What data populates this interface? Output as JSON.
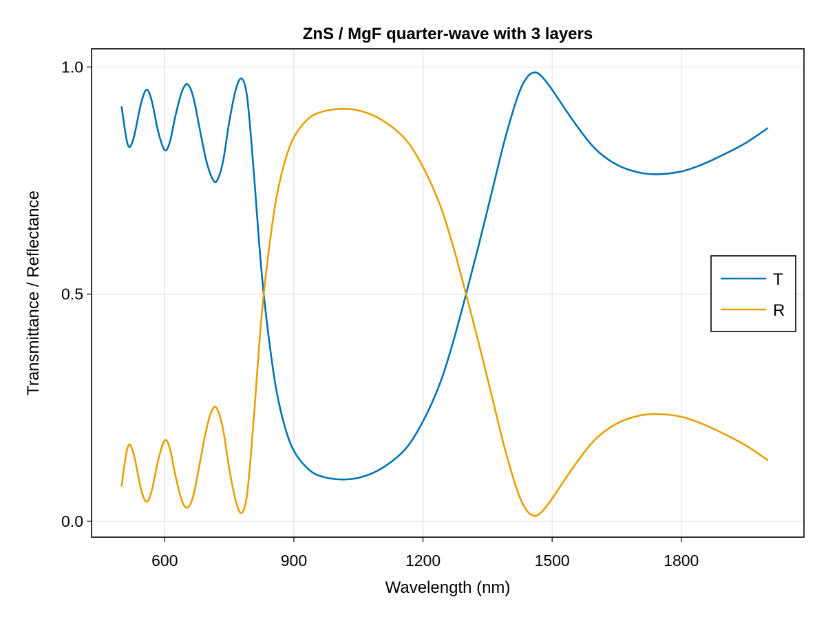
{
  "chart_data": {
    "type": "line",
    "title": "ZnS / MgF quarter-wave with 3 layers",
    "xlabel": "Wavelength (nm)",
    "ylabel": "Transmittance / Reflectance",
    "xlim": [
      430,
      2085
    ],
    "ylim": [
      -0.035,
      1.04
    ],
    "xticks": [
      600,
      900,
      1200,
      1500,
      1800
    ],
    "xtick_labels": [
      "600",
      "900",
      "1200",
      "1500",
      "1800"
    ],
    "yticks": [
      0.0,
      0.5,
      1.0
    ],
    "ytick_labels": [
      "0.0",
      "0.5",
      "1.0"
    ],
    "grid": true,
    "legend_position": "right",
    "series": [
      {
        "name": "T",
        "color": "#0072b2",
        "points": [
          [
            500,
            0.912
          ],
          [
            506,
            0.872
          ],
          [
            513,
            0.833
          ],
          [
            520,
            0.825
          ],
          [
            530,
            0.852
          ],
          [
            545,
            0.92
          ],
          [
            558,
            0.95
          ],
          [
            570,
            0.925
          ],
          [
            585,
            0.857
          ],
          [
            600,
            0.817
          ],
          [
            612,
            0.835
          ],
          [
            625,
            0.893
          ],
          [
            640,
            0.946
          ],
          [
            653,
            0.962
          ],
          [
            666,
            0.935
          ],
          [
            680,
            0.87
          ],
          [
            695,
            0.8
          ],
          [
            708,
            0.76
          ],
          [
            720,
            0.748
          ],
          [
            735,
            0.79
          ],
          [
            750,
            0.88
          ],
          [
            765,
            0.95
          ],
          [
            778,
            0.975
          ],
          [
            790,
            0.943
          ],
          [
            800,
            0.85
          ],
          [
            810,
            0.73
          ],
          [
            820,
            0.605
          ],
          [
            830,
            0.5
          ],
          [
            845,
            0.38
          ],
          [
            860,
            0.285
          ],
          [
            880,
            0.205
          ],
          [
            900,
            0.155
          ],
          [
            930,
            0.118
          ],
          [
            960,
            0.1
          ],
          [
            1010,
            0.092
          ],
          [
            1060,
            0.098
          ],
          [
            1110,
            0.12
          ],
          [
            1160,
            0.16
          ],
          [
            1200,
            0.22
          ],
          [
            1240,
            0.305
          ],
          [
            1270,
            0.395
          ],
          [
            1300,
            0.5
          ],
          [
            1330,
            0.61
          ],
          [
            1360,
            0.725
          ],
          [
            1390,
            0.84
          ],
          [
            1420,
            0.935
          ],
          [
            1440,
            0.975
          ],
          [
            1458,
            0.988
          ],
          [
            1475,
            0.98
          ],
          [
            1500,
            0.95
          ],
          [
            1550,
            0.88
          ],
          [
            1600,
            0.82
          ],
          [
            1650,
            0.785
          ],
          [
            1700,
            0.768
          ],
          [
            1745,
            0.764
          ],
          [
            1800,
            0.77
          ],
          [
            1850,
            0.786
          ],
          [
            1900,
            0.808
          ],
          [
            1950,
            0.833
          ],
          [
            2000,
            0.865
          ]
        ]
      },
      {
        "name": "R",
        "color": "#e69f00",
        "points": [
          [
            500,
            0.078
          ],
          [
            506,
            0.122
          ],
          [
            513,
            0.16
          ],
          [
            520,
            0.168
          ],
          [
            530,
            0.14
          ],
          [
            545,
            0.07
          ],
          [
            558,
            0.043
          ],
          [
            570,
            0.068
          ],
          [
            585,
            0.135
          ],
          [
            600,
            0.178
          ],
          [
            612,
            0.16
          ],
          [
            625,
            0.1
          ],
          [
            640,
            0.045
          ],
          [
            653,
            0.03
          ],
          [
            666,
            0.055
          ],
          [
            680,
            0.12
          ],
          [
            695,
            0.195
          ],
          [
            708,
            0.24
          ],
          [
            720,
            0.25
          ],
          [
            735,
            0.205
          ],
          [
            750,
            0.115
          ],
          [
            765,
            0.045
          ],
          [
            778,
            0.018
          ],
          [
            790,
            0.05
          ],
          [
            800,
            0.145
          ],
          [
            810,
            0.265
          ],
          [
            820,
            0.395
          ],
          [
            830,
            0.5
          ],
          [
            845,
            0.62
          ],
          [
            860,
            0.715
          ],
          [
            880,
            0.795
          ],
          [
            900,
            0.845
          ],
          [
            930,
            0.883
          ],
          [
            960,
            0.9
          ],
          [
            1010,
            0.908
          ],
          [
            1060,
            0.902
          ],
          [
            1110,
            0.88
          ],
          [
            1160,
            0.84
          ],
          [
            1200,
            0.78
          ],
          [
            1240,
            0.695
          ],
          [
            1270,
            0.605
          ],
          [
            1300,
            0.5
          ],
          [
            1330,
            0.39
          ],
          [
            1360,
            0.275
          ],
          [
            1390,
            0.16
          ],
          [
            1420,
            0.065
          ],
          [
            1440,
            0.025
          ],
          [
            1458,
            0.012
          ],
          [
            1475,
            0.02
          ],
          [
            1500,
            0.05
          ],
          [
            1550,
            0.12
          ],
          [
            1600,
            0.18
          ],
          [
            1650,
            0.215
          ],
          [
            1700,
            0.232
          ],
          [
            1745,
            0.236
          ],
          [
            1800,
            0.23
          ],
          [
            1850,
            0.214
          ],
          [
            1900,
            0.192
          ],
          [
            1950,
            0.167
          ],
          [
            2000,
            0.135
          ]
        ]
      }
    ]
  }
}
